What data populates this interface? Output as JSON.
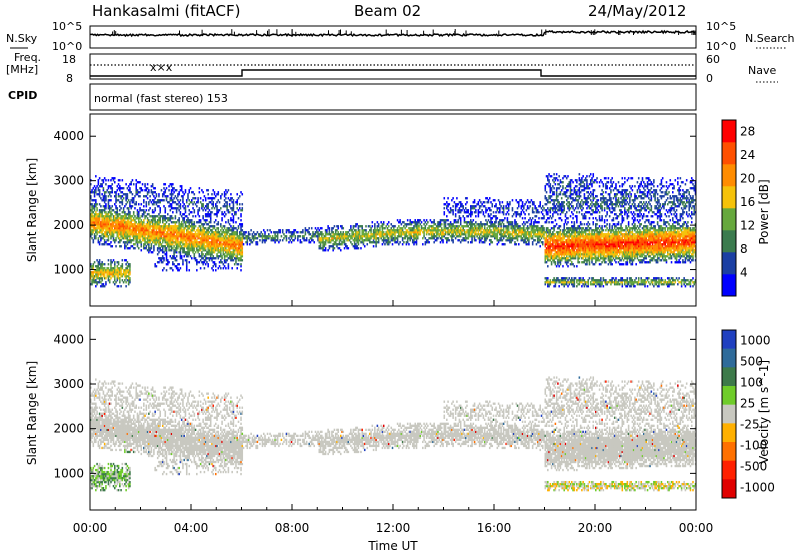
{
  "header": {
    "station": "Hankasalmi (fitACF)",
    "beam": "Beam 02",
    "date": "24/May/2012"
  },
  "top_panels": {
    "nsky_label": "N.Sky",
    "nsky_ticks": [
      "10^5",
      "10^0"
    ],
    "nsearch_label": "N.Search",
    "nsearch_ticks": [
      "10^5",
      "10^0"
    ],
    "freq_label_line1": "Freq.",
    "freq_label_line2": "[MHz]",
    "freq_ticks": [
      "18",
      "8"
    ],
    "nave_label": "Nave",
    "nave_ticks": [
      "60",
      "0"
    ],
    "cpid_label": "CPID",
    "cpid_text": "normal (fast stereo) 153"
  },
  "colors": {
    "power_scale": [
      "#0000ff",
      "#1b3fa3",
      "#3b7b4e",
      "#66a83d",
      "#f5c20a",
      "#ff8c00",
      "#ff5000",
      "#ff0000"
    ],
    "velocity_scale": [
      "#2040c0",
      "#2f6b9a",
      "#3d7a4a",
      "#6fcc2a",
      "#c8c8c0",
      "#ffb000",
      "#ff7000",
      "#ff2000",
      "#e00000"
    ],
    "ground_scatter": "#c8c8c0"
  },
  "chart_data": [
    {
      "type": "heatmap",
      "panel": "power",
      "ylabel": "Slant Range [km]",
      "yticks": [
        "1000",
        "2000",
        "3000",
        "4000"
      ],
      "ylim": [
        180,
        4500
      ],
      "xlim": [
        0,
        24
      ],
      "colorbar_label": "Power [dB]",
      "colorbar_ticks": [
        "4",
        "8",
        "12",
        "16",
        "20",
        "24",
        "28"
      ],
      "colorbar_range": [
        0,
        30
      ]
    },
    {
      "type": "heatmap",
      "panel": "velocity",
      "ylabel": "Slant Range [km]",
      "yticks": [
        "1000",
        "2000",
        "3000",
        "4000"
      ],
      "ylim": [
        180,
        4500
      ],
      "xlim": [
        0,
        24
      ],
      "xlabel": "Time UT",
      "xticks": [
        "00:00",
        "04:00",
        "08:00",
        "12:00",
        "16:00",
        "20:00",
        "00:00"
      ],
      "colorbar_label": "Velocity [m s^-1]",
      "colorbar_ticks": [
        "1000",
        "500",
        "100",
        "25",
        "-25",
        "-100",
        "-500",
        "-1000"
      ]
    }
  ]
}
